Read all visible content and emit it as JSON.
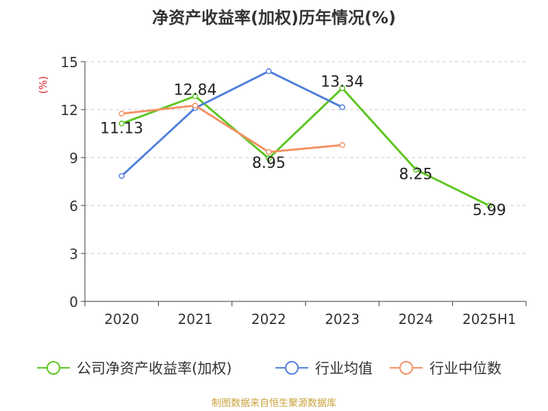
{
  "chart_data": {
    "type": "line",
    "title": "净资产收益率(加权)历年情况(%)",
    "ylabel": "(%)",
    "ylim": [
      0,
      15
    ],
    "yticks": [
      0,
      3,
      6,
      9,
      12,
      15
    ],
    "categories": [
      "2020",
      "2021",
      "2022",
      "2023",
      "2024",
      "2025H1"
    ],
    "grid": true,
    "legend_position": "bottom",
    "series": [
      {
        "name": "公司净资产收益率(加权)",
        "color": "#5bc51f",
        "values": [
          11.13,
          12.84,
          8.95,
          13.34,
          8.25,
          5.99
        ],
        "labels": [
          "11.13",
          "12.84",
          "8.95",
          "13.34",
          "8.25",
          "5.99"
        ]
      },
      {
        "name": "行业均值",
        "color": "#4f7fdc",
        "values": [
          7.85,
          12.1,
          14.4,
          12.15,
          null,
          null
        ]
      },
      {
        "name": "行业中位数",
        "color": "#f39163",
        "values": [
          11.75,
          12.25,
          9.35,
          9.78,
          null,
          null
        ]
      }
    ]
  },
  "source": "制图数据来自恒生聚源数据库"
}
